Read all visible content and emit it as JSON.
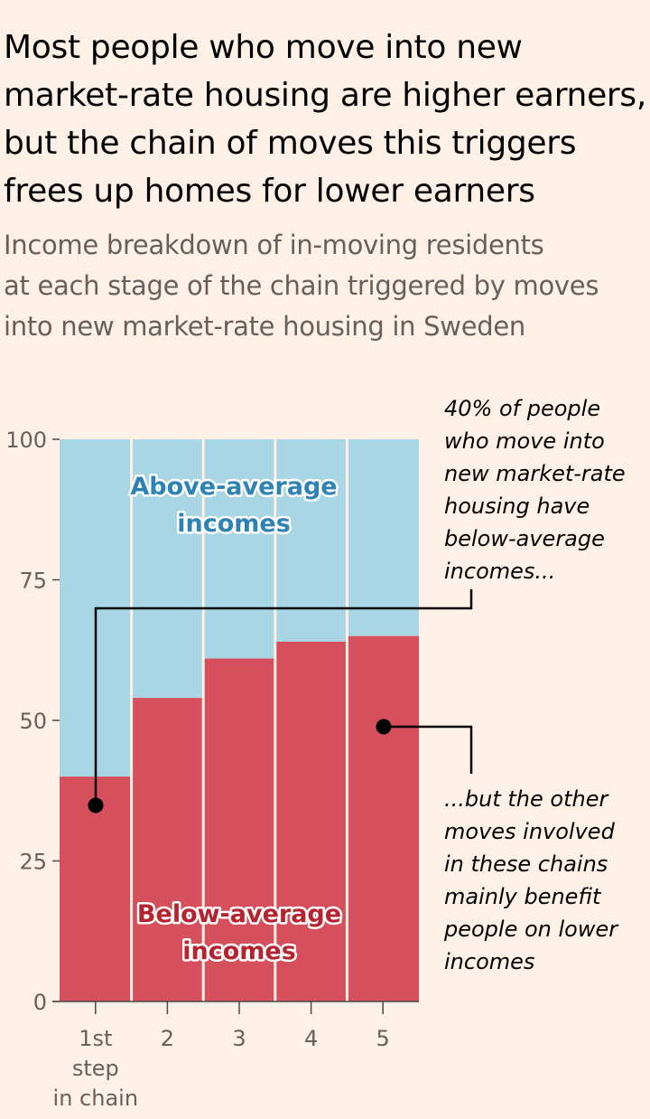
{
  "title": "Most people who move into new\nmarket-rate housing are higher earners,\nbut the chain of moves this triggers\nfrees up homes for lower earners",
  "subtitle": "Income breakdown of in-moving residents\nat each stage of the chain triggered by moves\ninto new market-rate housing in Sweden",
  "chart_data": {
    "type": "bar",
    "stacked": true,
    "categories": [
      "1st step in chain",
      "2",
      "3",
      "4",
      "5"
    ],
    "category_tick_lines": [
      [
        "1st",
        "step",
        "in chain"
      ],
      [
        "2"
      ],
      [
        "3"
      ],
      [
        "4"
      ],
      [
        "5"
      ]
    ],
    "series": [
      {
        "name": "Below-average incomes",
        "values": [
          40,
          54,
          61,
          64,
          65
        ],
        "color": "#d5505c"
      },
      {
        "name": "Above-average incomes",
        "values": [
          60,
          46,
          39,
          36,
          35
        ],
        "color": "#a8d6e5"
      }
    ],
    "ylim": [
      0,
      100
    ],
    "yticks": [
      0,
      25,
      50,
      75,
      100
    ],
    "region_labels": {
      "above": [
        "Above-average",
        "incomes"
      ],
      "below": [
        "Below-average",
        "incomes"
      ]
    },
    "region_label_colors": {
      "above": "#2e83b5",
      "below": "#b5232f"
    },
    "annotations": {
      "top": [
        "40% of people",
        "who move into",
        "new market-rate",
        "housing have",
        "below-average",
        "incomes..."
      ],
      "bottom": [
        "...but the other",
        "moves involved",
        "in these chains",
        "mainly benefit",
        "people on lower",
        "incomes"
      ]
    }
  }
}
